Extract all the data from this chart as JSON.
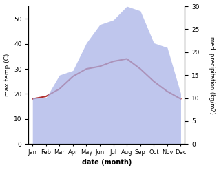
{
  "months": [
    "Jan",
    "Feb",
    "Mar",
    "Apr",
    "May",
    "Jun",
    "Jul",
    "Aug",
    "Sep",
    "Oct",
    "Nov",
    "Dec"
  ],
  "temp": [
    18,
    19,
    22,
    27,
    30,
    31,
    33,
    34,
    30,
    25,
    21,
    18
  ],
  "precip": [
    10,
    10,
    15,
    16,
    22,
    26,
    27,
    30,
    29,
    22,
    21,
    11
  ],
  "temp_color": "#b03030",
  "precip_color": "#aab4e8",
  "precip_alpha": 0.75,
  "temp_ylim": [
    0,
    55
  ],
  "precip_ylim": [
    0,
    30
  ],
  "temp_yticks": [
    0,
    10,
    20,
    30,
    40,
    50
  ],
  "precip_yticks": [
    0,
    5,
    10,
    15,
    20,
    25,
    30
  ],
  "ylabel_left": "max temp (C)",
  "ylabel_right": "med. precipitation (kg/m2)",
  "xlabel": "date (month)",
  "background_color": "#ffffff"
}
